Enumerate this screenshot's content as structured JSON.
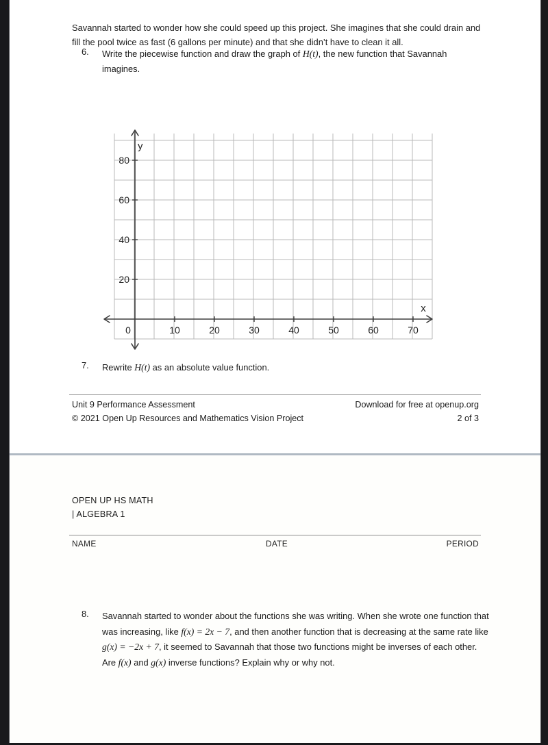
{
  "doc": {
    "page2": {
      "intro": "Savannah started to wonder how she could speed up this project. She imagines that she could drain and fill the pool twice as fast (6 gallons per minute) and that she didn’t have to clean it all.",
      "q6_number": "6.",
      "q6_before": "Write the piecewise function and draw the graph of ",
      "q6_math": "H(t)",
      "q6_after": ", the new function that Savannah imagines.",
      "q7_number": "7.",
      "q7_before": "Rewrite ",
      "q7_math": "H(t)",
      "q7_after": " as an absolute value function.",
      "graph": {
        "y_axis_label": "y",
        "x_axis_label": "x",
        "y_ticks": [
          "20",
          "40",
          "60",
          "80"
        ],
        "x_ticks": [
          "0",
          "10",
          "20",
          "30",
          "40",
          "50",
          "60",
          "70"
        ]
      },
      "footer_left_1": "Unit 9 Performance Assessment",
      "footer_left_2": "© 2021 Open Up Resources and Mathematics Vision Project",
      "footer_right_1": "Download for free at openup.org",
      "footer_right_2": "2 of 3"
    },
    "page3": {
      "brand_1": "OPEN UP HS MATH",
      "brand_2": "| ALGEBRA 1",
      "name_label": "NAME",
      "date_label": "DATE",
      "period_label": "PERIOD",
      "q8_number": "8.",
      "q8_s1": "Savannah started to wonder about the functions she was writing. When she wrote one function that was increasing, like ",
      "q8_m1": "f(x) = 2x − 7",
      "q8_s2": ", and then another function that is decreasing at the same rate like ",
      "q8_m2": "g(x) = −2x + 7",
      "q8_s3": ", it seemed to Savannah that those two functions might be inverses of each other. Are ",
      "q8_m3": "f(x)",
      "q8_s4": " and ",
      "q8_m4": "g(x)",
      "q8_s5": " inverse functions? Explain why or why not."
    }
  }
}
